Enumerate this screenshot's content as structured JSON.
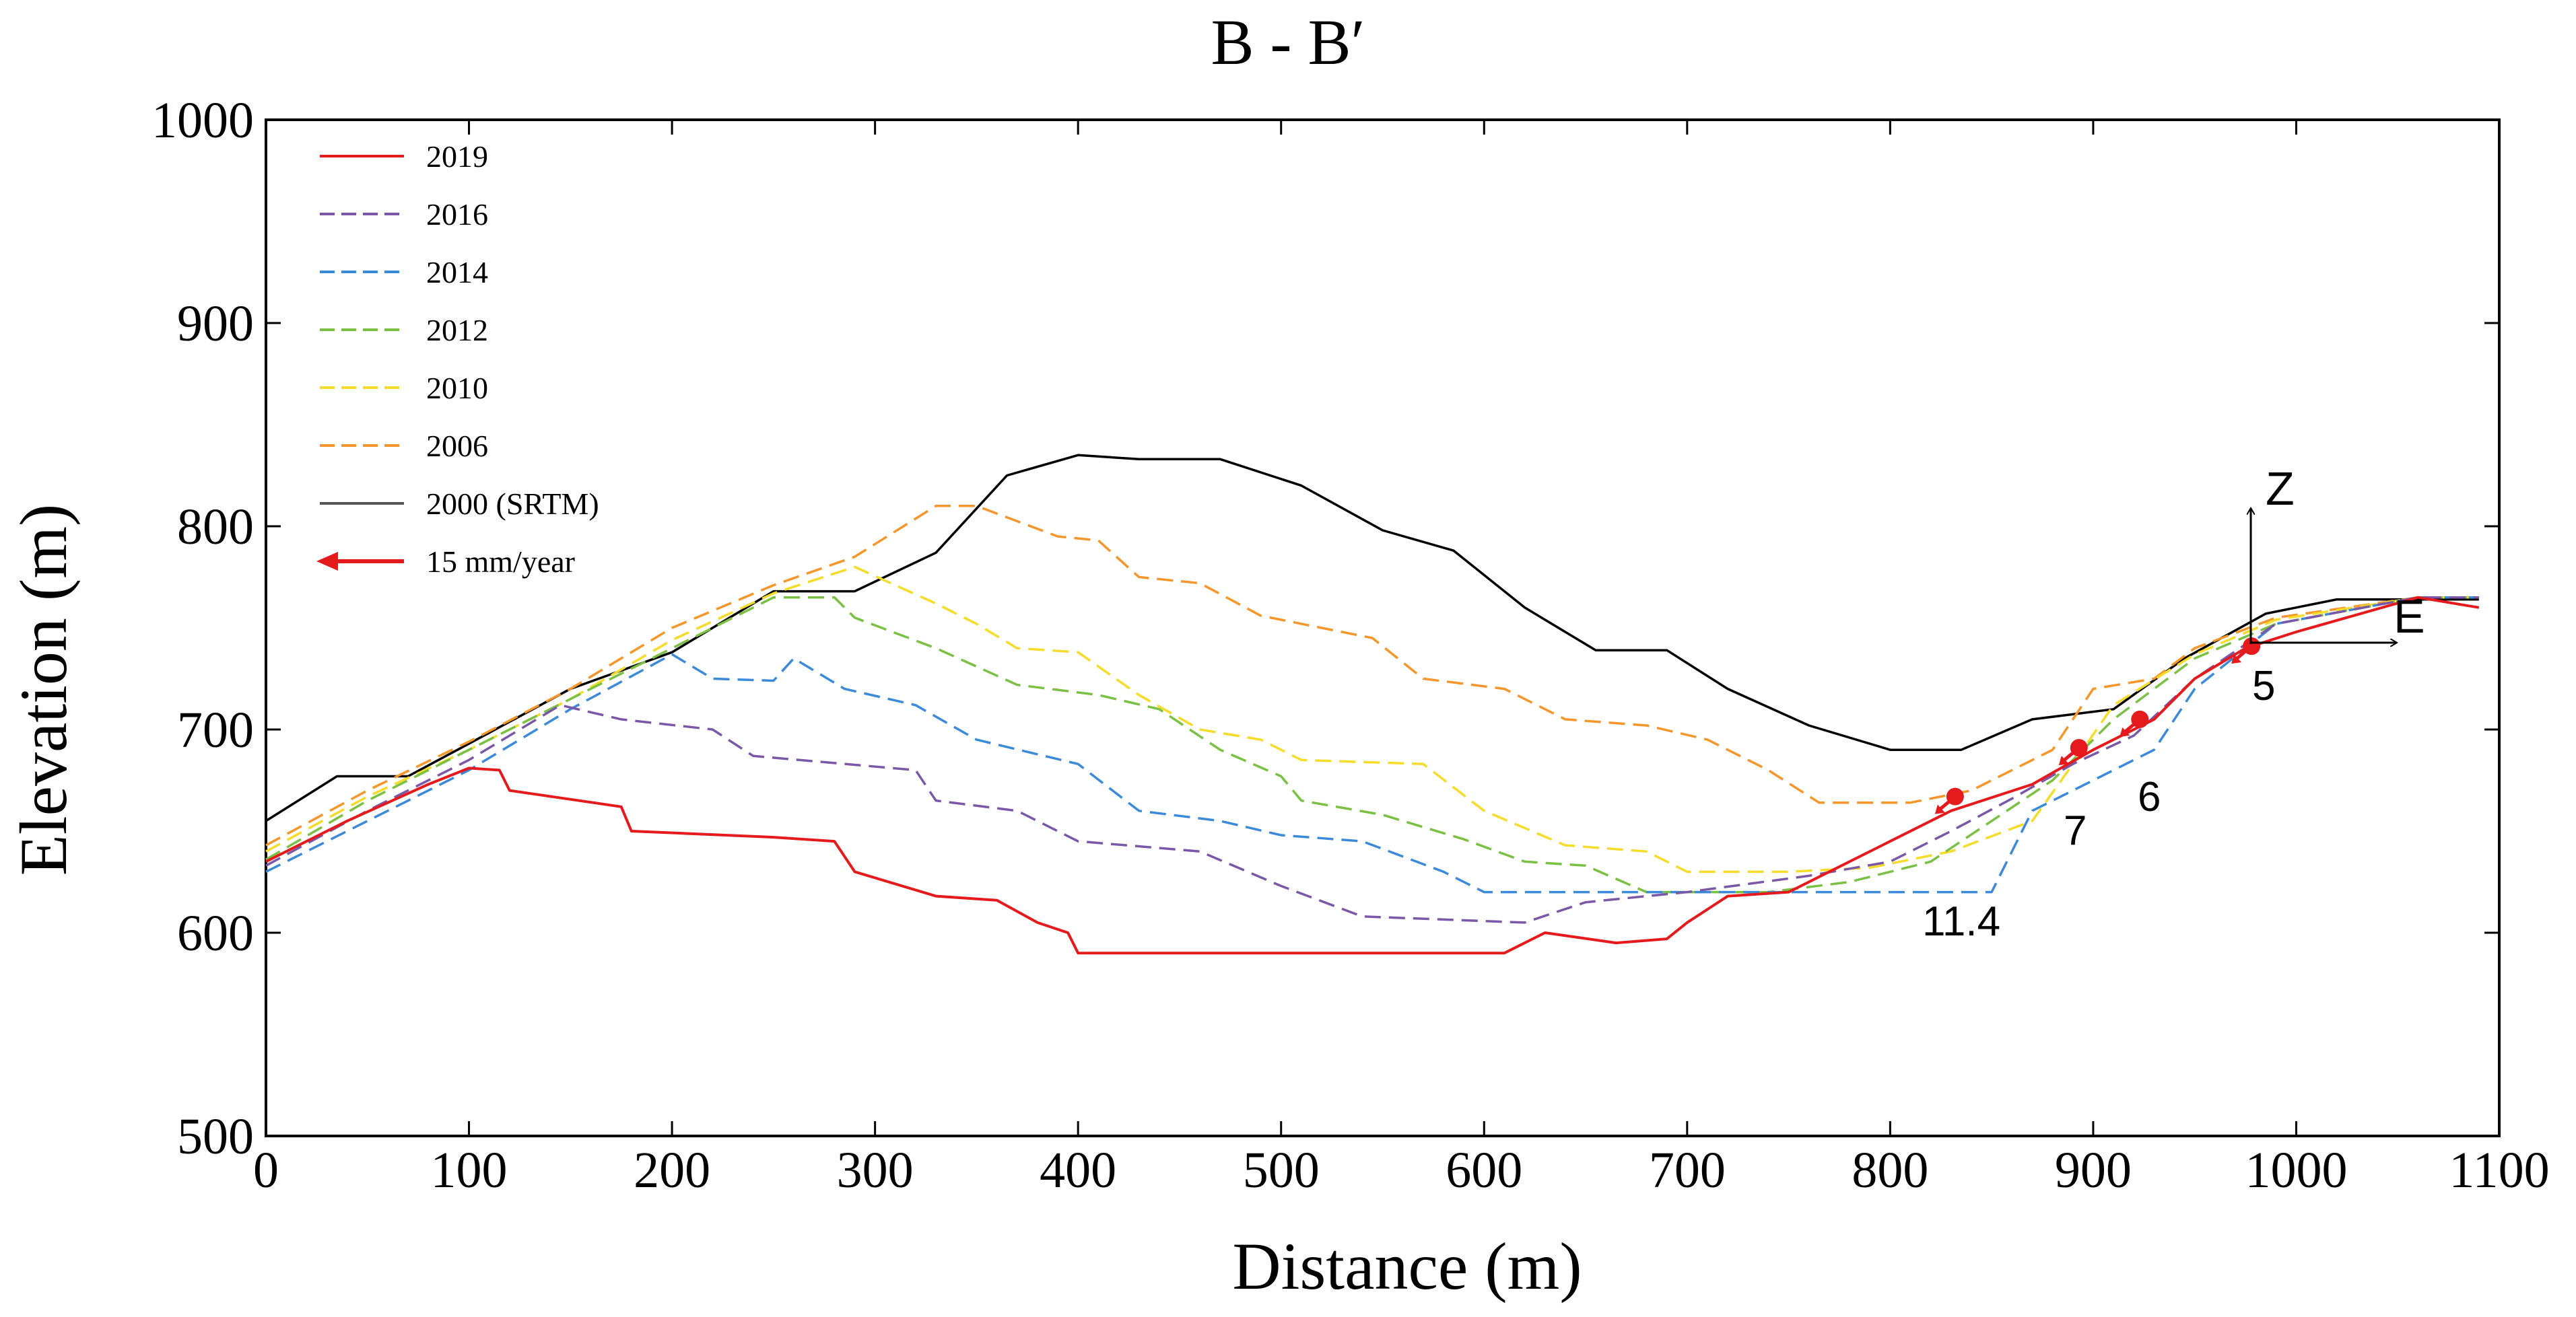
{
  "chart_data": {
    "type": "line",
    "title": "B - B′",
    "xlabel": "Distance (m)",
    "ylabel": "Elevation (m)",
    "xlim": [
      0,
      1100
    ],
    "ylim": [
      500,
      1000
    ],
    "x_ticks": [
      0,
      100,
      200,
      300,
      400,
      500,
      600,
      700,
      800,
      900,
      1000,
      1100
    ],
    "y_ticks": [
      500,
      600,
      700,
      800,
      900,
      1000
    ],
    "x_tick_labels": [
      "0",
      "100",
      "200",
      "300",
      "400",
      "500",
      "600",
      "700",
      "800",
      "900",
      "1000",
      "1100"
    ],
    "y_tick_labels": [
      "500",
      "600",
      "700",
      "800",
      "900",
      "1000"
    ],
    "grid": false,
    "legend_position": "top-left",
    "series": [
      {
        "name": "2000 (SRTM)",
        "color": "#000000",
        "dashed": false,
        "points": [
          [
            0,
            655
          ],
          [
            35,
            677
          ],
          [
            70,
            677
          ],
          [
            100,
            693
          ],
          [
            150,
            720
          ],
          [
            200,
            738
          ],
          [
            250,
            768
          ],
          [
            290,
            768
          ],
          [
            330,
            787
          ],
          [
            365,
            825
          ],
          [
            400,
            835
          ],
          [
            430,
            833
          ],
          [
            470,
            833
          ],
          [
            510,
            820
          ],
          [
            550,
            798
          ],
          [
            585,
            788
          ],
          [
            620,
            760
          ],
          [
            655,
            739
          ],
          [
            690,
            739
          ],
          [
            720,
            720
          ],
          [
            760,
            702
          ],
          [
            800,
            690
          ],
          [
            835,
            690
          ],
          [
            870,
            705
          ],
          [
            910,
            710
          ],
          [
            945,
            735
          ],
          [
            985,
            757
          ],
          [
            1020,
            764
          ],
          [
            1060,
            764
          ],
          [
            1090,
            764
          ]
        ]
      },
      {
        "name": "2006",
        "color": "#f5962a",
        "dashed": true,
        "points": [
          [
            0,
            643
          ],
          [
            50,
            670
          ],
          [
            100,
            694
          ],
          [
            150,
            720
          ],
          [
            200,
            750
          ],
          [
            250,
            771
          ],
          [
            290,
            785
          ],
          [
            330,
            810
          ],
          [
            350,
            810
          ],
          [
            390,
            795
          ],
          [
            410,
            793
          ],
          [
            430,
            775
          ],
          [
            460,
            772
          ],
          [
            490,
            756
          ],
          [
            520,
            750
          ],
          [
            545,
            745
          ],
          [
            570,
            725
          ],
          [
            610,
            720
          ],
          [
            640,
            705
          ],
          [
            680,
            702
          ],
          [
            710,
            695
          ],
          [
            740,
            680
          ],
          [
            765,
            664
          ],
          [
            810,
            664
          ],
          [
            840,
            670
          ],
          [
            880,
            690
          ],
          [
            900,
            720
          ],
          [
            930,
            725
          ],
          [
            950,
            740
          ],
          [
            990,
            755
          ],
          [
            1060,
            765
          ],
          [
            1090,
            765
          ]
        ]
      },
      {
        "name": "2010",
        "color": "#f5dc2a",
        "dashed": true,
        "points": [
          [
            0,
            640
          ],
          [
            50,
            667
          ],
          [
            100,
            690
          ],
          [
            150,
            715
          ],
          [
            200,
            744
          ],
          [
            250,
            767
          ],
          [
            290,
            780
          ],
          [
            330,
            762
          ],
          [
            350,
            752
          ],
          [
            370,
            740
          ],
          [
            400,
            738
          ],
          [
            430,
            717
          ],
          [
            460,
            700
          ],
          [
            490,
            695
          ],
          [
            510,
            685
          ],
          [
            570,
            683
          ],
          [
            600,
            660
          ],
          [
            640,
            643
          ],
          [
            680,
            640
          ],
          [
            700,
            630
          ],
          [
            750,
            630
          ],
          [
            790,
            632
          ],
          [
            830,
            640
          ],
          [
            870,
            655
          ],
          [
            890,
            683
          ],
          [
            910,
            712
          ],
          [
            950,
            737
          ],
          [
            990,
            754
          ],
          [
            1060,
            765
          ],
          [
            1090,
            765
          ]
        ]
      },
      {
        "name": "2012",
        "color": "#7ac143",
        "dashed": true,
        "points": [
          [
            0,
            636
          ],
          [
            50,
            665
          ],
          [
            100,
            690
          ],
          [
            150,
            715
          ],
          [
            200,
            740
          ],
          [
            250,
            765
          ],
          [
            280,
            765
          ],
          [
            290,
            755
          ],
          [
            330,
            740
          ],
          [
            370,
            722
          ],
          [
            410,
            717
          ],
          [
            440,
            710
          ],
          [
            470,
            690
          ],
          [
            500,
            677
          ],
          [
            510,
            665
          ],
          [
            550,
            658
          ],
          [
            590,
            646
          ],
          [
            620,
            635
          ],
          [
            650,
            633
          ],
          [
            680,
            620
          ],
          [
            740,
            620
          ],
          [
            780,
            625
          ],
          [
            820,
            635
          ],
          [
            850,
            655
          ],
          [
            880,
            675
          ],
          [
            910,
            705
          ],
          [
            950,
            735
          ],
          [
            990,
            752
          ],
          [
            1060,
            765
          ],
          [
            1090,
            765
          ]
        ]
      },
      {
        "name": "2014",
        "color": "#3b8ad9",
        "dashed": true,
        "points": [
          [
            0,
            630
          ],
          [
            50,
            655
          ],
          [
            100,
            680
          ],
          [
            150,
            710
          ],
          [
            200,
            737
          ],
          [
            220,
            725
          ],
          [
            250,
            724
          ],
          [
            260,
            735
          ],
          [
            285,
            720
          ],
          [
            320,
            712
          ],
          [
            350,
            695
          ],
          [
            400,
            683
          ],
          [
            430,
            660
          ],
          [
            470,
            655
          ],
          [
            500,
            648
          ],
          [
            540,
            645
          ],
          [
            580,
            630
          ],
          [
            600,
            620
          ],
          [
            700,
            620
          ],
          [
            850,
            620
          ],
          [
            870,
            660
          ],
          [
            900,
            675
          ],
          [
            930,
            690
          ],
          [
            950,
            720
          ],
          [
            990,
            752
          ],
          [
            1060,
            765
          ],
          [
            1090,
            765
          ]
        ]
      },
      {
        "name": "2016",
        "color": "#7b57a8",
        "dashed": true,
        "points": [
          [
            0,
            633
          ],
          [
            50,
            660
          ],
          [
            100,
            685
          ],
          [
            145,
            712
          ],
          [
            175,
            705
          ],
          [
            220,
            700
          ],
          [
            240,
            687
          ],
          [
            320,
            680
          ],
          [
            330,
            665
          ],
          [
            370,
            660
          ],
          [
            400,
            645
          ],
          [
            460,
            640
          ],
          [
            500,
            623
          ],
          [
            540,
            608
          ],
          [
            620,
            605
          ],
          [
            650,
            615
          ],
          [
            700,
            620
          ],
          [
            760,
            628
          ],
          [
            800,
            635
          ],
          [
            830,
            650
          ],
          [
            860,
            666
          ],
          [
            890,
            683
          ],
          [
            920,
            697
          ],
          [
            950,
            725
          ],
          [
            990,
            752
          ],
          [
            1060,
            765
          ],
          [
            1090,
            765
          ]
        ]
      },
      {
        "name": "2019",
        "color": "#e41a1c",
        "dashed": false,
        "points": [
          [
            0,
            635
          ],
          [
            40,
            655
          ],
          [
            80,
            673
          ],
          [
            100,
            681
          ],
          [
            115,
            680
          ],
          [
            120,
            670
          ],
          [
            175,
            662
          ],
          [
            180,
            650
          ],
          [
            250,
            647
          ],
          [
            280,
            645
          ],
          [
            290,
            630
          ],
          [
            330,
            618
          ],
          [
            360,
            616
          ],
          [
            380,
            605
          ],
          [
            395,
            600
          ],
          [
            400,
            590
          ],
          [
            530,
            590
          ],
          [
            610,
            590
          ],
          [
            630,
            600
          ],
          [
            665,
            595
          ],
          [
            690,
            597
          ],
          [
            700,
            605
          ],
          [
            720,
            618
          ],
          [
            750,
            620
          ],
          [
            800,
            645
          ],
          [
            830,
            660
          ],
          [
            870,
            673
          ],
          [
            900,
            690
          ],
          [
            930,
            705
          ],
          [
            950,
            725
          ],
          [
            975,
            740
          ],
          [
            1000,
            748
          ],
          [
            1060,
            765
          ],
          [
            1090,
            760
          ]
        ]
      }
    ],
    "velocity_points": [
      {
        "x": 832,
        "y": 667,
        "label": "11.4"
      },
      {
        "x": 893,
        "y": 691,
        "label": "7"
      },
      {
        "x": 923,
        "y": 705,
        "label": "6"
      },
      {
        "x": 978,
        "y": 741,
        "label": "5"
      }
    ],
    "axes_indicator": {
      "z_label": "Z",
      "e_label": "E"
    },
    "legend_entries": [
      {
        "label": "2019",
        "color": "#e41a1c",
        "dashed": false,
        "arrow": false
      },
      {
        "label": "2016",
        "color": "#7b57a8",
        "dashed": true,
        "arrow": false
      },
      {
        "label": "2014",
        "color": "#3b8ad9",
        "dashed": true,
        "arrow": false
      },
      {
        "label": "2012",
        "color": "#7ac143",
        "dashed": true,
        "arrow": false
      },
      {
        "label": "2010",
        "color": "#f5dc2a",
        "dashed": true,
        "arrow": false
      },
      {
        "label": "2006",
        "color": "#f5962a",
        "dashed": true,
        "arrow": false
      },
      {
        "label": "2000 (SRTM)",
        "color": "#555555",
        "dashed": false,
        "arrow": false
      },
      {
        "label": "15 mm/year",
        "color": "#e41a1c",
        "dashed": false,
        "arrow": true
      }
    ]
  }
}
